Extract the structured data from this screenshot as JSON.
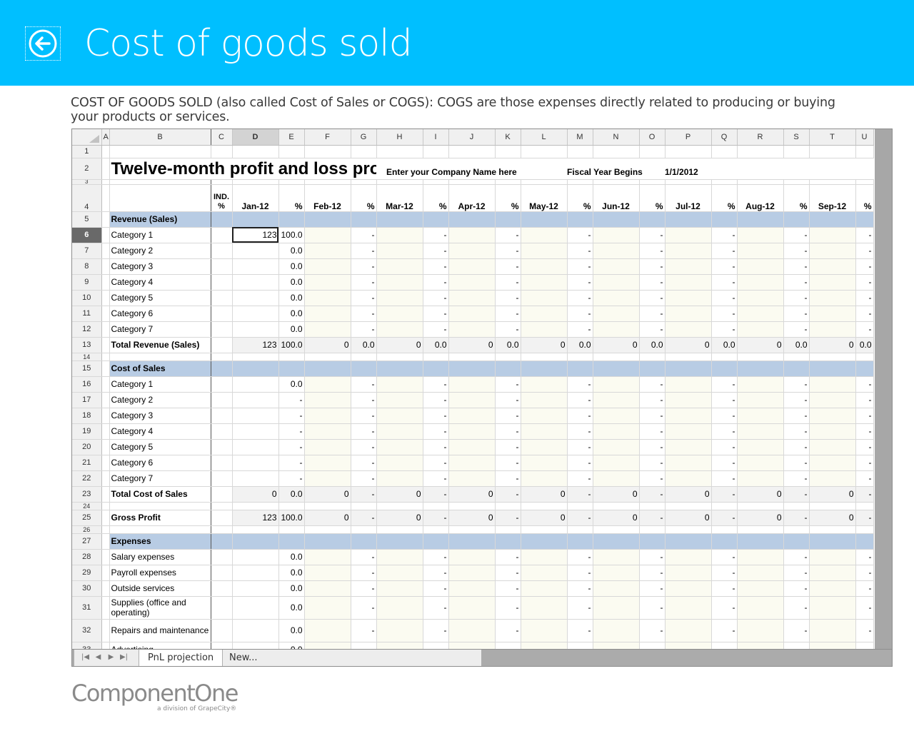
{
  "header": {
    "title": "Cost of goods sold",
    "back_icon": "back-arrow-icon",
    "bg_color": "#00bfff"
  },
  "description": "COST OF GOODS SOLD (also called Cost of Sales or COGS): COGS are those expenses directly related to producing or buying your products or services.",
  "spreadsheet": {
    "columns": [
      "A",
      "B",
      "C",
      "D",
      "E",
      "F",
      "G",
      "H",
      "I",
      "J",
      "K",
      "L",
      "M",
      "N",
      "O",
      "P",
      "Q",
      "R",
      "S",
      "T",
      "U"
    ],
    "active_column": "D",
    "active_row": "6",
    "title": "Twelve-month profit and loss projection",
    "company_prompt": "Enter your Company Name here",
    "fiscal_label": "Fiscal Year Begins",
    "fiscal_value": "1/1/2012",
    "ind_header": "IND. %",
    "month_headers": [
      "Jan-12",
      "Feb-12",
      "Mar-12",
      "Apr-12",
      "May-12",
      "Jun-12",
      "Jul-12",
      "Aug-12",
      "Sep-12"
    ],
    "pct_header": "%",
    "rows": [
      {
        "n": "1",
        "kind": "r1"
      },
      {
        "n": "2",
        "kind": "title"
      },
      {
        "n": "3",
        "kind": "r3"
      },
      {
        "n": "4",
        "kind": "months"
      },
      {
        "n": "5",
        "kind": "section",
        "label": "Revenue (Sales)"
      },
      {
        "n": "6",
        "kind": "data",
        "label": "Category 1",
        "d": "123",
        "e": "100.0",
        "rest": "-"
      },
      {
        "n": "7",
        "kind": "data",
        "label": "Category 2",
        "d": "",
        "e": "0.0",
        "rest": "-"
      },
      {
        "n": "8",
        "kind": "data",
        "label": "Category 3",
        "d": "",
        "e": "0.0",
        "rest": "-"
      },
      {
        "n": "9",
        "kind": "data",
        "label": "Category 4",
        "d": "",
        "e": "0.0",
        "rest": "-"
      },
      {
        "n": "10",
        "kind": "data",
        "label": "Category 5",
        "d": "",
        "e": "0.0",
        "rest": "-"
      },
      {
        "n": "11",
        "kind": "data",
        "label": "Category 6",
        "d": "",
        "e": "0.0",
        "rest": "-"
      },
      {
        "n": "12",
        "kind": "data",
        "label": "Category 7",
        "d": "",
        "e": "0.0",
        "rest": "-"
      },
      {
        "n": "13",
        "kind": "total",
        "label": "Total Revenue (Sales)",
        "d": "123",
        "e": "100.0",
        "mon": "0",
        "pct": "0.0",
        "last": "0."
      },
      {
        "n": "14",
        "kind": "thin"
      },
      {
        "n": "15",
        "kind": "section",
        "label": "Cost of Sales"
      },
      {
        "n": "16",
        "kind": "data",
        "label": "Category 1",
        "d": "",
        "e": "0.0",
        "rest": "-"
      },
      {
        "n": "17",
        "kind": "data",
        "label": "Category 2",
        "d": "",
        "e": "-",
        "rest": "-"
      },
      {
        "n": "18",
        "kind": "data",
        "label": "Category 3",
        "d": "",
        "e": "-",
        "rest": "-"
      },
      {
        "n": "19",
        "kind": "data",
        "label": "Category 4",
        "d": "",
        "e": "-",
        "rest": "-"
      },
      {
        "n": "20",
        "kind": "data",
        "label": "Category 5",
        "d": "",
        "e": "-",
        "rest": "-"
      },
      {
        "n": "21",
        "kind": "data",
        "label": "Category 6",
        "d": "",
        "e": "-",
        "rest": "-"
      },
      {
        "n": "22",
        "kind": "data",
        "label": "Category 7",
        "d": "",
        "e": "-",
        "rest": "-"
      },
      {
        "n": "23",
        "kind": "total",
        "label": "Total Cost of Sales",
        "d": "0",
        "e": "0.0",
        "mon": "0",
        "pct": "-",
        "last": ""
      },
      {
        "n": "24",
        "kind": "thin"
      },
      {
        "n": "25",
        "kind": "total",
        "label": "Gross Profit",
        "d": "123",
        "e": "100.0",
        "mon": "0",
        "pct": "-",
        "last": ""
      },
      {
        "n": "26",
        "kind": "thin"
      },
      {
        "n": "27",
        "kind": "section",
        "label": "Expenses"
      },
      {
        "n": "28",
        "kind": "data",
        "label": "Salary expenses",
        "d": "",
        "e": "0.0",
        "rest": "-"
      },
      {
        "n": "29",
        "kind": "data",
        "label": "Payroll expenses",
        "d": "",
        "e": "0.0",
        "rest": "-"
      },
      {
        "n": "30",
        "kind": "data",
        "label": "Outside services",
        "d": "",
        "e": "0.0",
        "rest": "-"
      },
      {
        "n": "31",
        "kind": "tall",
        "label": "Supplies (office and operating)",
        "d": "",
        "e": "0.0",
        "rest": "-"
      },
      {
        "n": "32",
        "kind": "tall",
        "label": "Repairs and maintenance",
        "d": "",
        "e": "0.0",
        "rest": "-"
      },
      {
        "n": "33",
        "kind": "data",
        "label": "Advertising",
        "d": "",
        "e": "0.0",
        "rest": "-"
      }
    ]
  },
  "tabs": {
    "nav_icons": [
      "first-sheet-icon",
      "prev-sheet-icon",
      "next-sheet-icon",
      "last-sheet-icon"
    ],
    "sheet_tab": "PnL projection",
    "new_tab": "New..."
  },
  "footer": {
    "brand": "ComponentOne",
    "sub": "a division of GrapeCity®"
  }
}
